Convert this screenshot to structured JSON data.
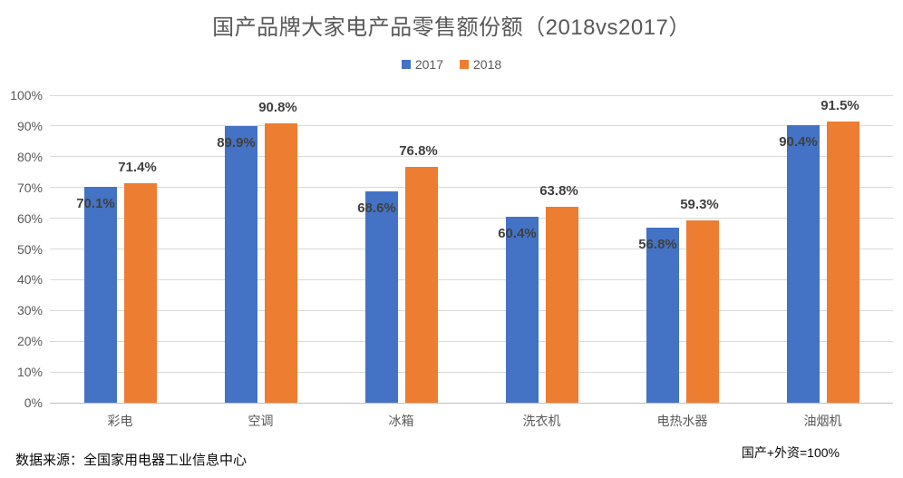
{
  "title": "国产品牌大家电产品零售额份额（2018vs2017）",
  "footer": {
    "source": "数据来源：全国家用电器工业信息中心",
    "note": "国产+外资=100%"
  },
  "colors": {
    "series_2017": "#4472C4",
    "series_2018": "#ED7D31",
    "gridline": "#D9D9D9",
    "axis_line": "#BFBFBF",
    "title_text": "#595959",
    "axis_text": "#595959",
    "data_label_text": "#404040"
  },
  "chart_data": {
    "type": "bar",
    "categories": [
      "彩电",
      "空调",
      "冰箱",
      "洗衣机",
      "电热水器",
      "油烟机"
    ],
    "series": [
      {
        "name": "2017",
        "color": "#4472C4",
        "values": [
          70.1,
          89.9,
          68.6,
          60.4,
          56.8,
          90.4
        ]
      },
      {
        "name": "2018",
        "color": "#ED7D31",
        "values": [
          71.4,
          90.8,
          76.8,
          63.8,
          59.3,
          91.5
        ]
      }
    ],
    "value_suffix": "%",
    "y_ticks": [
      "0%",
      "10%",
      "20%",
      "30%",
      "40%",
      "50%",
      "60%",
      "70%",
      "80%",
      "90%",
      "100%"
    ],
    "ylim": [
      0,
      100
    ],
    "grid": true,
    "legend_position": "top",
    "data_labels": true
  }
}
